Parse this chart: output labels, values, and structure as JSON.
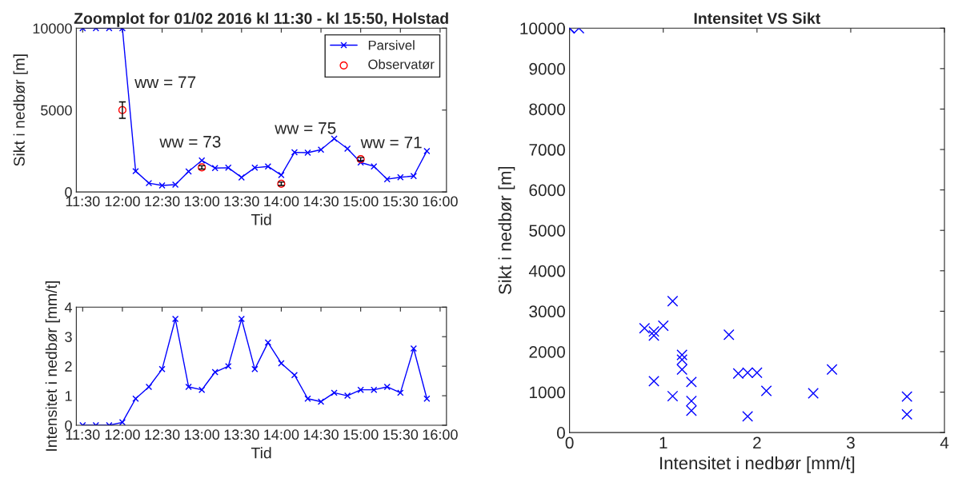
{
  "chart_data": [
    {
      "type": "line",
      "title": "Zoomplot for 01/02 2016 kl 11:30 - kl 15:50, Holstad",
      "xlabel": "Tid",
      "ylabel": "Sikt i nedbør [m]",
      "xlim": [
        11.42,
        16.08
      ],
      "xticks": [
        {
          "value": 11.5,
          "label": "11:30"
        },
        {
          "value": 12.0,
          "label": "12:00"
        },
        {
          "value": 12.5,
          "label": "12:30"
        },
        {
          "value": 13.0,
          "label": "13:00"
        },
        {
          "value": 13.5,
          "label": "13:30"
        },
        {
          "value": 14.0,
          "label": "14:00"
        },
        {
          "value": 14.5,
          "label": "14:30"
        },
        {
          "value": 15.0,
          "label": "15:00"
        },
        {
          "value": 15.5,
          "label": "15:30"
        },
        {
          "value": 16.0,
          "label": "16:00"
        }
      ],
      "ylim": [
        0,
        10000
      ],
      "yticks": [
        0,
        5000,
        10000
      ],
      "grid": false,
      "legend": "top right",
      "series": [
        {
          "name": "Parsivel",
          "type": "line",
          "marker": "cross",
          "color": "#0000ff",
          "x": [
            11.5,
            11.6667,
            11.8333,
            12.0,
            12.1667,
            12.3333,
            12.5,
            12.6667,
            12.8333,
            13.0,
            13.1667,
            13.3333,
            13.5,
            13.6667,
            13.8333,
            14.0,
            14.1667,
            14.3333,
            14.5,
            14.6667,
            14.8333,
            15.0,
            15.1667,
            15.3333,
            15.5,
            15.6667,
            15.8333
          ],
          "values": [
            10000,
            10000,
            10000,
            10000,
            1270,
            540,
            400,
            450,
            1250,
            1920,
            1460,
            1480,
            890,
            1480,
            1560,
            1030,
            2420,
            2400,
            2580,
            3250,
            2640,
            1800,
            1560,
            780,
            900,
            970,
            2500
          ]
        },
        {
          "name": "Observatør",
          "type": "scatter",
          "marker": "circle",
          "color": "#ff0000",
          "x": [
            12.0,
            13.0,
            14.0,
            15.0
          ],
          "values": [
            5000,
            1500,
            500,
            2000
          ],
          "errors": [
            500,
            100,
            100,
            100
          ]
        }
      ],
      "annotations": [
        {
          "text": "ww = 77",
          "x": 12.0,
          "y": 5000
        },
        {
          "text": "ww = 73",
          "x": 13.0,
          "y": 1500
        },
        "ww = 75",
        {
          "text": "ww = 71",
          "x": 15.0,
          "y": 2000
        }
      ]
    },
    {
      "type": "line",
      "xlabel": "Tid",
      "ylabel": "Intensitet i nedbør [mm/t]",
      "xlim": [
        11.42,
        16.08
      ],
      "xticks": [
        {
          "value": 11.5,
          "label": "11:30"
        },
        {
          "value": 12.0,
          "label": "12:00"
        },
        {
          "value": 12.5,
          "label": "12:30"
        },
        {
          "value": 13.0,
          "label": "13:00"
        },
        {
          "value": 13.5,
          "label": "13:30"
        },
        {
          "value": 14.0,
          "label": "14:00"
        },
        {
          "value": 14.5,
          "label": "14:30"
        },
        {
          "value": 15.0,
          "label": "15:00"
        },
        {
          "value": 15.5,
          "label": "15:30"
        },
        {
          "value": 16.0,
          "label": "16:00"
        }
      ],
      "ylim": [
        0,
        4
      ],
      "yticks": [
        0,
        1,
        2,
        3,
        4
      ],
      "grid": false,
      "marker": "cross",
      "series": [
        {
          "color": "#0000ff",
          "x": [
            11.5,
            11.6667,
            11.8333,
            12.0,
            12.1667,
            12.3333,
            12.5,
            12.6667,
            12.8333,
            13.0,
            13.1667,
            13.3333,
            13.5,
            13.6667,
            13.8333,
            14.0,
            14.1667,
            14.3333,
            14.5,
            14.6667,
            14.8333,
            15.0,
            15.1667,
            15.3333,
            15.5,
            15.6667,
            15.8333
          ],
          "values": [
            0,
            0,
            0,
            0.1,
            0.9,
            1.3,
            1.9,
            3.6,
            1.3,
            1.2,
            1.8,
            2.0,
            3.6,
            1.9,
            2.8,
            2.1,
            1.7,
            0.9,
            0.8,
            1.1,
            1.0,
            1.2,
            1.2,
            1.3,
            1.1,
            2.6,
            0.9
          ]
        }
      ]
    },
    {
      "type": "scatter",
      "title": "Intensitet VS Sikt",
      "xlabel": "Intensitet i nedbør [mm/t]",
      "ylabel": "Sikt i nedbør [m]",
      "xlim": [
        0,
        4
      ],
      "xticks": [
        0,
        1,
        2,
        3,
        4
      ],
      "ylim": [
        0,
        10000
      ],
      "yticks": [
        0,
        1000,
        2000,
        3000,
        4000,
        5000,
        6000,
        7000,
        8000,
        9000,
        10000
      ],
      "grid": false,
      "marker": "cross",
      "series": [
        {
          "color": "#0000ff",
          "x": [
            0,
            0,
            0,
            0.1,
            0.9,
            1.3,
            1.9,
            3.6,
            1.3,
            1.2,
            1.8,
            2.0,
            3.6,
            1.9,
            2.8,
            2.1,
            1.7,
            0.9,
            0.8,
            1.1,
            1.0,
            1.2,
            1.2,
            1.3,
            1.1,
            2.6,
            0.9
          ],
          "values": [
            10000,
            10000,
            10000,
            10000,
            1270,
            540,
            400,
            450,
            1250,
            1920,
            1460,
            1480,
            890,
            1480,
            1560,
            1030,
            2420,
            2400,
            2580,
            3250,
            2640,
            1800,
            1560,
            780,
            900,
            970,
            2500
          ]
        }
      ]
    }
  ]
}
